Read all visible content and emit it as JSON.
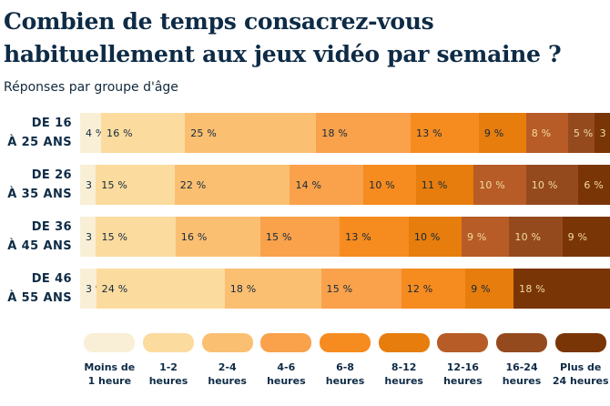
{
  "header": {
    "title_lines": [
      "Combien de temps consacrez-vous",
      "habituellement aux jeux vidéo par semaine ?"
    ],
    "subtitle": "Réponses par groupe d'âge"
  },
  "colors": {
    "background": "#FFFFFF",
    "title": "#0E2B46",
    "text_dark": "#13293C",
    "text_light": "#F3DCA1"
  },
  "chart_data": {
    "type": "bar",
    "stacked": true,
    "orientation": "horizontal",
    "value_unit": "%",
    "title": "Combien de temps consacrez-vous habituellement aux jeux vidéo par semaine ?",
    "subtitle": "Réponses par groupe d'âge",
    "legend_position": "bottom",
    "grid": false,
    "categories": [
      "Moins de 1 heure",
      "1-2 heures",
      "2-4 heures",
      "4-6 heures",
      "6-8 heures",
      "8-12 heures",
      "12-16 heures",
      "16-24 heures",
      "Plus de 24 heures"
    ],
    "palette": [
      "#F9EFD6",
      "#FBDB9E",
      "#FBBF72",
      "#F9A14B",
      "#F68B1F",
      "#E67D0C",
      "#B75C26",
      "#954A1E",
      "#7A3506"
    ],
    "light_text_from_index": 6,
    "groups": [
      {
        "label_lines": [
          "DE 16",
          "À 25 ANS"
        ],
        "values": [
          4,
          16,
          25,
          18,
          13,
          9,
          8,
          5,
          3
        ]
      },
      {
        "label_lines": [
          "DE 26",
          "À 35 ANS"
        ],
        "values": [
          3,
          15,
          22,
          14,
          10,
          11,
          10,
          10,
          6
        ]
      },
      {
        "label_lines": [
          "DE 36",
          "À 45 ANS"
        ],
        "values": [
          3,
          15,
          16,
          15,
          13,
          10,
          9,
          10,
          9
        ]
      },
      {
        "label_lines": [
          "DE 46",
          "À 55 ANS"
        ],
        "values": [
          3,
          24,
          18,
          15,
          12,
          9,
          0,
          0,
          18
        ]
      }
    ],
    "legend_lines": [
      [
        "Moins de",
        "1 heure"
      ],
      [
        "1-2",
        "heures"
      ],
      [
        "2-4",
        "heures"
      ],
      [
        "4-6",
        "heures"
      ],
      [
        "6-8",
        "heures"
      ],
      [
        "8-12",
        "heures"
      ],
      [
        "12-16",
        "heures"
      ],
      [
        "16-24",
        "heures"
      ],
      [
        "Plus de",
        "24 heures"
      ]
    ]
  }
}
